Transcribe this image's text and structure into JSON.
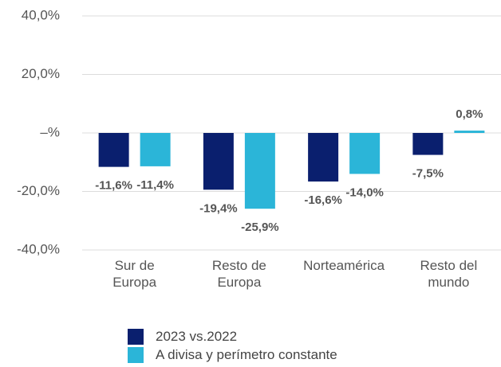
{
  "chart_data": {
    "type": "bar",
    "categories": [
      "Sur de\nEuropa",
      "Resto de\nEuropa",
      "Norteamérica",
      "Resto del\nmundo"
    ],
    "series": [
      {
        "name": "2023 vs.2022",
        "color": "#0a1f6e",
        "values": [
          -11.6,
          -19.4,
          -16.6,
          -7.5
        ],
        "value_labels": [
          "-11,6%",
          "-19,4%",
          "-16,6%",
          "-7,5%"
        ]
      },
      {
        "name": "A divisa y perímetro constante",
        "color": "#2bb5d8",
        "values": [
          -11.4,
          -25.9,
          -14.0,
          0.8
        ],
        "value_labels": [
          "-11,4%",
          "-25,9%",
          "-14,0%",
          "0,8%"
        ]
      }
    ],
    "ylim": [
      -40,
      40
    ],
    "yticks": [
      {
        "value": -40,
        "label": "-40,0%"
      },
      {
        "value": -20,
        "label": "-20,0%"
      },
      {
        "value": 0,
        "label": "–%"
      },
      {
        "value": 20,
        "label": "20,0%"
      },
      {
        "value": 40,
        "label": "40,0%"
      }
    ],
    "grid": true
  }
}
